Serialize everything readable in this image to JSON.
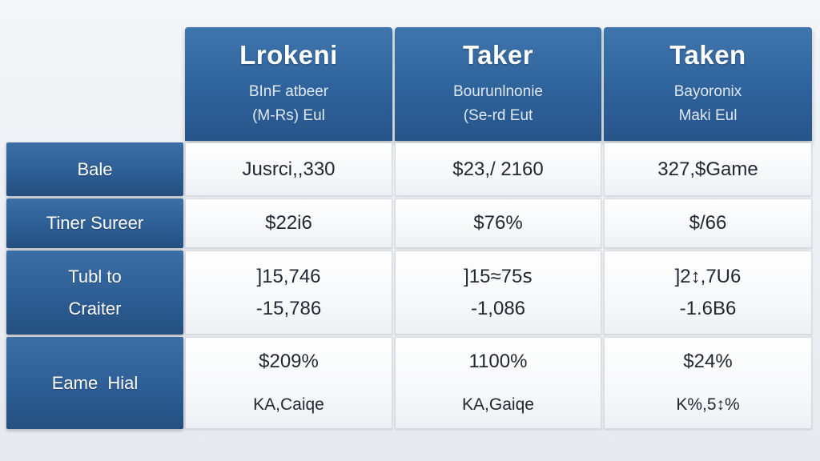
{
  "columns": [
    {
      "title": "Lrokeni",
      "sub1": "BInF atbeer",
      "sub2": "(M-Rs) Eul"
    },
    {
      "title": "Taker",
      "sub1": "Bourunlnonie",
      "sub2": "(Se-rd Eut"
    },
    {
      "title": "Taken",
      "sub1": "Bayoronix",
      "sub2": "Maki Eul"
    }
  ],
  "rows": [
    {
      "label": [
        "Bale"
      ],
      "cells": [
        [
          "Jusrci,,330"
        ],
        [
          "$23,/ 2160"
        ],
        [
          "327,$Game"
        ]
      ]
    },
    {
      "label": [
        "Tiner Sureer"
      ],
      "cells": [
        [
          "$22i6"
        ],
        [
          "$76%"
        ],
        [
          "$/66"
        ]
      ]
    },
    {
      "label": [
        "Tubl to",
        "Craiter"
      ],
      "cells": [
        [
          "]15,746",
          "-15,786"
        ],
        [
          "]15≈75ꜱ",
          "-1,086"
        ],
        [
          "]2↕,7U6",
          "-1.6B6"
        ]
      ]
    },
    {
      "label": [
        "Eame  Hial"
      ],
      "cells": [
        [
          "$209%",
          "KA,Caiqe"
        ],
        [
          "1100%",
          "KA,Gaiqe"
        ],
        [
          "$24%",
          "K%,5↕%"
        ]
      ]
    }
  ]
}
